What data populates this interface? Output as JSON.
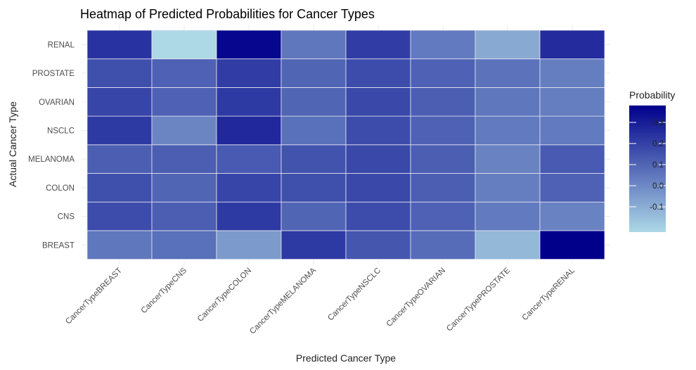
{
  "chart_data": {
    "type": "heatmap",
    "title": "Heatmap of Predicted Probabilities for Cancer Types",
    "xlabel": "Predicted Cancer Type",
    "ylabel": "Actual Cancer Type",
    "x_categories": [
      "CancerTypeBREAST",
      "CancerTypeCNS",
      "CancerTypeCOLON",
      "CancerTypeMELANOMA",
      "CancerTypeNSCLC",
      "CancerTypeOVARIAN",
      "CancerTypePROSTATE",
      "CancerTypeRENAL"
    ],
    "y_categories": [
      "BREAST",
      "CNS",
      "COLON",
      "MELANOMA",
      "NSCLC",
      "OVARIAN",
      "PROSTATE",
      "RENAL"
    ],
    "values": [
      [
        0.05,
        0.07,
        -0.05,
        0.22,
        0.14,
        0.08,
        -0.13,
        0.38
      ],
      [
        0.17,
        0.12,
        0.22,
        0.1,
        0.17,
        0.11,
        0.04,
        0.02
      ],
      [
        0.16,
        0.1,
        0.19,
        0.16,
        0.18,
        0.12,
        0.03,
        0.11
      ],
      [
        0.12,
        0.12,
        0.13,
        0.15,
        0.18,
        0.12,
        0.02,
        0.13
      ],
      [
        0.22,
        0.01,
        0.27,
        0.07,
        0.17,
        0.11,
        0.04,
        0.04
      ],
      [
        0.19,
        0.11,
        0.22,
        0.1,
        0.18,
        0.12,
        0.05,
        0.03
      ],
      [
        0.16,
        0.11,
        0.21,
        0.1,
        0.17,
        0.11,
        0.06,
        0.03
      ],
      [
        0.24,
        -0.22,
        0.36,
        0.05,
        0.21,
        0.04,
        -0.09,
        0.26
      ]
    ],
    "legend": {
      "title": "Probability",
      "ticks": [
        -0.1,
        0.0,
        0.1,
        0.2,
        0.3
      ],
      "tick_labels": [
        "-0.1",
        "0.0",
        "0.1",
        "0.2",
        "0.3"
      ],
      "range": [
        -0.22,
        0.38
      ],
      "low_color": "#add8e6",
      "high_color": "#00008b"
    }
  }
}
